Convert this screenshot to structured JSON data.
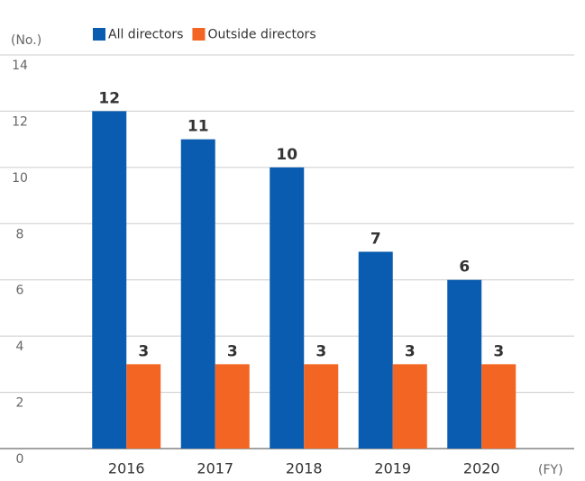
{
  "chart_data": {
    "type": "bar",
    "y_label": "(No.)",
    "x_label": "(FY)",
    "categories": [
      "2016",
      "2017",
      "2018",
      "2019",
      "2020"
    ],
    "series": [
      {
        "name": "All directors",
        "color": "#0a5cb0",
        "values": [
          12,
          11,
          10,
          7,
          6
        ]
      },
      {
        "name": "Outside directors",
        "color": "#f26522",
        "values": [
          3,
          3,
          3,
          3,
          3
        ]
      }
    ],
    "ylim": [
      0,
      14
    ],
    "yticks": [
      0,
      2,
      4,
      6,
      8,
      10,
      12,
      14
    ],
    "grid": true,
    "data_labels": true
  }
}
